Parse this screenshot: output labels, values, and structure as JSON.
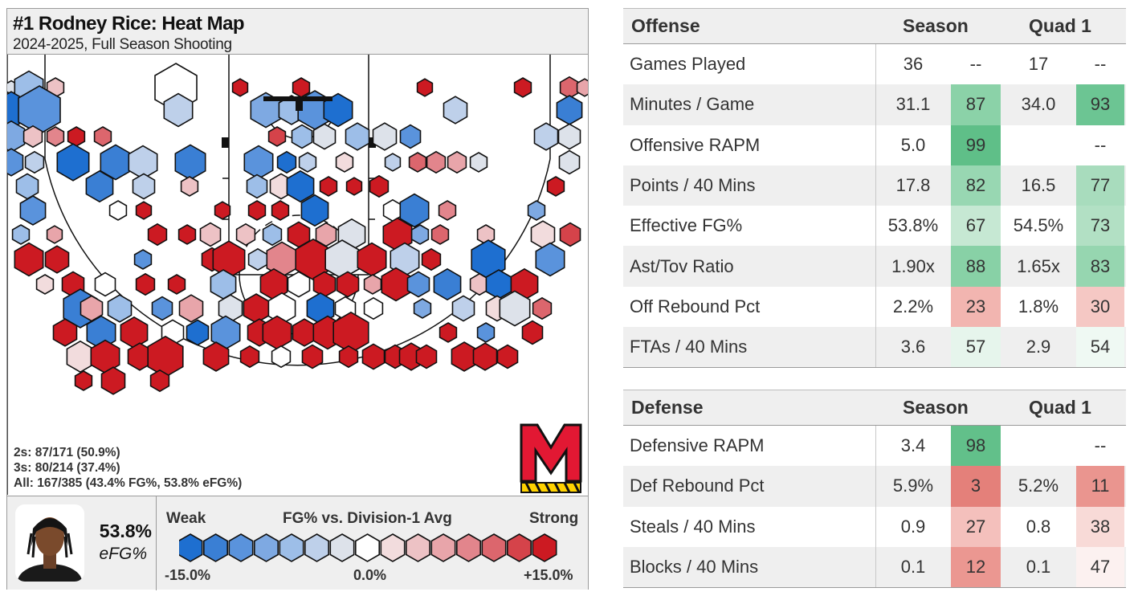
{
  "chart_data": {
    "type": "heatmap",
    "title": "#1 Rodney Rice: Heat Map",
    "subtitle": "2024-2025, Full Season Shooting",
    "stats_lines": [
      "2s: 87/171 (50.9%)",
      "3s: 80/214 (37.4%)",
      "All: 167/385 (43.4% FG%, 53.8% eFG%)"
    ],
    "efg_value": "53.8%",
    "efg_label": "eFG%",
    "legend": {
      "title": "FG% vs. Division-1 Avg",
      "weak": "Weak",
      "strong": "Strong",
      "min_label": "-15.0%",
      "mid_label": "0.0%",
      "max_label": "+15.0%",
      "colors": [
        "#1e6fd0",
        "#3a7fd4",
        "#5a93dc",
        "#7ea9e2",
        "#9dbee8",
        "#bed0ea",
        "#dde2ea",
        "#ffffff",
        "#f2dcdd",
        "#edc2c5",
        "#e8a5aa",
        "#e2858c",
        "#dc666d",
        "#d5434a",
        "#cc1a22"
      ]
    },
    "hexes": [
      [
        "L",
        -1,
        0.2
      ],
      [
        "C",
        -3,
        1.2
      ],
      [
        "C",
        2,
        0.5
      ],
      [
        "L",
        0,
        2.0
      ],
      [
        "L",
        7,
        0.4
      ],
      [
        "L",
        8,
        0.5
      ],
      [
        "L",
        10,
        0.4
      ],
      [
        "C",
        12,
        0.5
      ],
      [
        "L",
        5,
        0.6
      ],
      [
        "C",
        3,
        0.4
      ],
      [
        "L",
        -7,
        1.4
      ],
      [
        "L",
        -5,
        2.0
      ],
      [
        "L",
        -2,
        1.2
      ],
      [
        "L",
        -4,
        1.3
      ],
      [
        "L",
        -3,
        1.0
      ],
      [
        "L",
        -5,
        1.5
      ],
      [
        "L",
        -7,
        1.2
      ],
      [
        "L",
        -2,
        0.9
      ],
      [
        "L",
        -6,
        1.0
      ],
      [
        "L",
        -4,
        1.1
      ],
      [
        "L",
        2,
        0.6
      ],
      [
        "L",
        4,
        0.5
      ],
      [
        "C",
        7,
        0.5
      ],
      [
        "C",
        5,
        0.5
      ],
      [
        "C",
        6,
        0.5
      ],
      [
        "C",
        -3,
        0.7
      ],
      [
        "C",
        -1,
        0.8
      ],
      [
        "C",
        -3,
        0.9
      ],
      [
        "C",
        -1,
        0.9
      ],
      [
        "C",
        -5,
        0.7
      ],
      [
        "C",
        -2,
        0.9
      ],
      [
        "C",
        -1,
        0.8
      ],
      [
        "C",
        -5,
        0.9
      ],
      [
        "C",
        -2,
        0.6
      ],
      [
        "L",
        -7,
        1.4
      ],
      [
        "L",
        -6,
        1.3
      ],
      [
        "L",
        -2,
        1.2
      ],
      [
        "L",
        -6,
        1.3
      ],
      [
        "L",
        -5,
        1.2
      ],
      [
        "C",
        -7,
        0.6
      ],
      [
        "C",
        -2,
        0.5
      ],
      [
        "C",
        1,
        0.5
      ],
      [
        "L",
        -2,
        0.4
      ],
      [
        "L",
        5,
        0.5
      ],
      [
        "L",
        4,
        0.6
      ],
      [
        "C",
        3,
        0.6
      ],
      [
        "C",
        -1,
        0.5
      ],
      [
        "L",
        -1,
        0.7
      ],
      [
        "L",
        -3,
        0.8
      ],
      [
        "L",
        -6,
        1.1
      ],
      [
        "L",
        -2,
        0.8
      ],
      [
        "L",
        2,
        0.5
      ],
      [
        "L",
        -3,
        0.7
      ],
      [
        "L",
        1,
        0.8
      ],
      [
        "L",
        -7,
        1.1
      ],
      [
        "L",
        8,
        0.5
      ],
      [
        "C",
        10,
        0.4
      ],
      [
        "L",
        10,
        0.6
      ],
      [
        "L",
        8,
        0.5
      ],
      [
        "L",
        -5,
        1.0
      ],
      [
        "C",
        0,
        0.5
      ],
      [
        "C",
        12,
        0.4
      ],
      [
        "C",
        8,
        0.4
      ],
      [
        "C",
        11,
        0.5
      ],
      [
        "C",
        8,
        0.5
      ],
      [
        "L",
        -7,
        1.1
      ],
      [
        "L",
        0,
        0.6
      ],
      [
        "L",
        -6,
        1.2
      ],
      [
        "L",
        4,
        0.5
      ],
      [
        "C",
        -4,
        0.5
      ],
      [
        "C",
        -3,
        0.5
      ],
      [
        "C",
        3,
        0.4
      ],
      [
        "C",
        8,
        0.6
      ],
      [
        "C",
        9,
        0.5
      ],
      [
        "C",
        2,
        0.7
      ],
      [
        "C",
        2,
        0.6
      ],
      [
        "L",
        -3,
        0.6
      ],
      [
        "L",
        10,
        0.8
      ],
      [
        "L",
        3,
        0.7
      ],
      [
        "L",
        -1,
        1.1
      ],
      [
        "L",
        13,
        1.2
      ],
      [
        "C",
        -4,
        0.5
      ],
      [
        "C",
        5,
        0.5
      ],
      [
        "C",
        2,
        0.5
      ],
      [
        "C",
        1,
        0.9
      ],
      [
        "C",
        6,
        0.7
      ],
      [
        "C",
        12,
        1.2
      ],
      [
        "C",
        13,
        0.9
      ],
      [
        "C",
        -5,
        0.5
      ],
      [
        "C",
        9,
        0.7
      ],
      [
        "C",
        10,
        1.4
      ],
      [
        "L",
        -2,
        0.6
      ],
      [
        "C",
        4,
        1.3
      ],
      [
        "L",
        11,
        1.6
      ],
      [
        "L",
        -1,
        1.5
      ],
      [
        "L",
        12,
        1.2
      ],
      [
        "L",
        -2,
        1.2
      ],
      [
        "C",
        10,
        0.6
      ],
      [
        "L",
        -7,
        1.5
      ],
      [
        "L",
        -5,
        1.2
      ],
      [
        "L",
        1,
        0.5
      ],
      [
        "L",
        13,
        0.8
      ],
      [
        "C",
        0,
        0.7
      ],
      [
        "L",
        14,
        0.6
      ],
      [
        "C",
        13,
        0.5
      ],
      [
        "L",
        -3,
        1.0
      ],
      [
        "C",
        8,
        1.1
      ],
      [
        "C",
        0,
        0.8
      ],
      [
        "C",
        12,
        0.8
      ],
      [
        "L",
        13,
        0.8
      ],
      [
        "L",
        3,
        0.5
      ],
      [
        "L",
        14,
        1.2
      ],
      [
        "L",
        -5,
        0.8
      ],
      [
        "L",
        -6,
        1.1
      ],
      [
        "L",
        2,
        0.6
      ],
      [
        "L",
        -7,
        1.0
      ],
      [
        "L",
        10,
        1.1
      ],
      [
        "L",
        -6,
        1.5
      ],
      [
        "C",
        3,
        0.8
      ],
      [
        "L",
        -3,
        0.9
      ],
      [
        "C",
        -5,
        0.7
      ],
      [
        "C",
        3,
        0.9
      ],
      [
        "L",
        -1,
        0.9
      ],
      [
        "L",
        13,
        1.0
      ],
      [
        "L",
        0,
        1.1
      ],
      [
        "L",
        -7,
        1.1
      ],
      [
        "L",
        0,
        0.7
      ],
      [
        "L",
        0,
        0.6
      ],
      [
        "L",
        -4,
        0.5
      ],
      [
        "L",
        -2,
        0.8
      ],
      [
        "L",
        1,
        0.8
      ],
      [
        "L",
        -1,
        1.3
      ],
      [
        "L",
        5,
        0.6
      ],
      [
        "L",
        8,
        0.9
      ],
      [
        "L",
        -6,
        1.2
      ],
      [
        "L",
        13,
        1.1
      ],
      [
        "L",
        0,
        0.8
      ],
      [
        "L",
        -7,
        0.8
      ],
      [
        "L",
        -5,
        1.2
      ],
      [
        "L",
        13,
        0.9
      ],
      [
        "L",
        11,
        1.2
      ],
      [
        "L",
        8,
        0.9
      ],
      [
        "L",
        13,
        1.2
      ],
      [
        "L",
        10,
        1.6
      ],
      [
        "L",
        13,
        0.5
      ],
      [
        "L",
        -5,
        0.5
      ],
      [
        "L",
        13,
        0.7
      ],
      [
        "L",
        1,
        1.1
      ],
      [
        "L",
        10,
        1.2
      ],
      [
        "L",
        13,
        0.9
      ],
      [
        "L",
        13,
        1.6
      ],
      [
        "L",
        14,
        1.0
      ],
      [
        "L",
        10,
        0.6
      ],
      [
        "L",
        0,
        0.6
      ],
      [
        "L",
        13,
        0.7
      ],
      [
        "L",
        13,
        0.6
      ],
      [
        "L",
        14,
        0.8
      ],
      [
        "L",
        13,
        0.7
      ],
      [
        "L",
        13,
        0.9
      ],
      [
        "L",
        12,
        0.7
      ],
      [
        "L",
        14,
        1.0
      ],
      [
        "L",
        12,
        0.9
      ],
      [
        "L",
        14,
        0.7
      ],
      [
        "L",
        13,
        0.5
      ],
      [
        "L",
        14,
        0.9
      ],
      [
        "L",
        14,
        0.6
      ]
    ]
  },
  "offense": {
    "header": "Offense",
    "season_label": "Season",
    "quad_label": "Quad 1",
    "rows": [
      {
        "name": "Games Played",
        "season": "36",
        "season_pct": "--",
        "quad": "17",
        "quad_pct": "--",
        "season_color": "",
        "quad_color": ""
      },
      {
        "name": "Minutes / Game",
        "season": "31.1",
        "season_pct": "87",
        "quad": "34.0",
        "quad_pct": "93",
        "season_color": "#8bd2a8",
        "quad_color": "#6cc593"
      },
      {
        "name": "Offensive RAPM",
        "season": "5.0",
        "season_pct": "99",
        "quad": "",
        "quad_pct": "--",
        "season_color": "#5fbf88",
        "quad_color": ""
      },
      {
        "name": "Points / 40 Mins",
        "season": "17.8",
        "season_pct": "82",
        "quad": "16.5",
        "quad_pct": "77",
        "season_color": "#98d7b2",
        "quad_color": "#a8dcbd"
      },
      {
        "name": "Effective FG%",
        "season": "53.8%",
        "season_pct": "67",
        "quad": "54.5%",
        "quad_pct": "73",
        "season_color": "#c6e8d3",
        "quad_color": "#b2e0c4"
      },
      {
        "name": "Ast/Tov Ratio",
        "season": "1.90x",
        "season_pct": "88",
        "quad": "1.65x",
        "quad_pct": "83",
        "season_color": "#88d1a6",
        "quad_color": "#96d6b0"
      },
      {
        "name": "Off Rebound Pct",
        "season": "2.2%",
        "season_pct": "23",
        "quad": "1.8%",
        "quad_pct": "30",
        "season_color": "#f2b5b0",
        "quad_color": "#f5c8c4"
      },
      {
        "name": "FTAs / 40 Mins",
        "season": "3.6",
        "season_pct": "57",
        "quad": "2.9",
        "quad_pct": "54",
        "season_color": "#e6f5ec",
        "quad_color": "#eff9f3"
      }
    ]
  },
  "defense": {
    "header": "Defense",
    "season_label": "Season",
    "quad_label": "Quad 1",
    "rows": [
      {
        "name": "Defensive RAPM",
        "season": "3.4",
        "season_pct": "98",
        "quad": "",
        "quad_pct": "--",
        "season_color": "#62c08a",
        "quad_color": ""
      },
      {
        "name": "Def Rebound Pct",
        "season": "5.9%",
        "season_pct": "3",
        "quad": "5.2%",
        "quad_pct": "11",
        "season_color": "#e4807a",
        "quad_color": "#ea958f"
      },
      {
        "name": "Steals / 40 Mins",
        "season": "0.9",
        "season_pct": "27",
        "quad": "0.8",
        "quad_pct": "38",
        "season_color": "#f4c0bc",
        "quad_color": "#f8dad7"
      },
      {
        "name": "Blocks / 40 Mins",
        "season": "0.1",
        "season_pct": "12",
        "quad": "0.1",
        "quad_pct": "47",
        "season_color": "#eb9791",
        "quad_color": "#fcf1f0"
      }
    ]
  }
}
